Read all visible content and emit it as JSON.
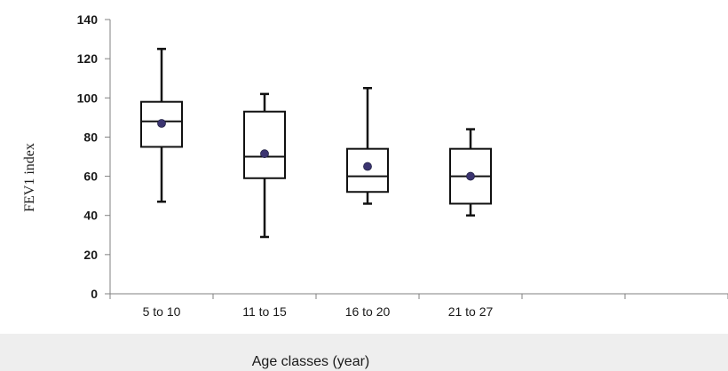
{
  "chart_data": {
    "type": "box",
    "title": "",
    "xlabel": "Age classes (year)",
    "ylabel": "FEV1 index",
    "ylim": [
      0,
      140
    ],
    "yticks": [
      0,
      20,
      40,
      60,
      80,
      100,
      120,
      140
    ],
    "categories": [
      "5 to 10",
      "11 to 15",
      "16 to 20",
      "21 to 27",
      "",
      ""
    ],
    "series": [
      {
        "boxes": [
          {
            "category": "5 to 10",
            "min": 47,
            "q1": 75,
            "median": 88,
            "q3": 98,
            "max": 125,
            "mean": 87
          },
          {
            "category": "11 to 15",
            "min": 29,
            "q1": 59,
            "median": 70,
            "q3": 93,
            "max": 102,
            "mean": 71.5
          },
          {
            "category": "16 to 20",
            "min": 46,
            "q1": 52,
            "median": 60,
            "q3": 74,
            "max": 105,
            "mean": 65
          },
          {
            "category": "21 to 27",
            "min": 40,
            "q1": 46,
            "median": 60,
            "q3": 74,
            "max": 84,
            "mean": 60
          }
        ]
      }
    ],
    "colors": {
      "mean_marker": "#3b3470",
      "box_stroke": "#111111",
      "axis": "#808080",
      "plot_background": "#ffffff",
      "page_background": "#eeeeee"
    },
    "grid": false,
    "legend": "none"
  }
}
